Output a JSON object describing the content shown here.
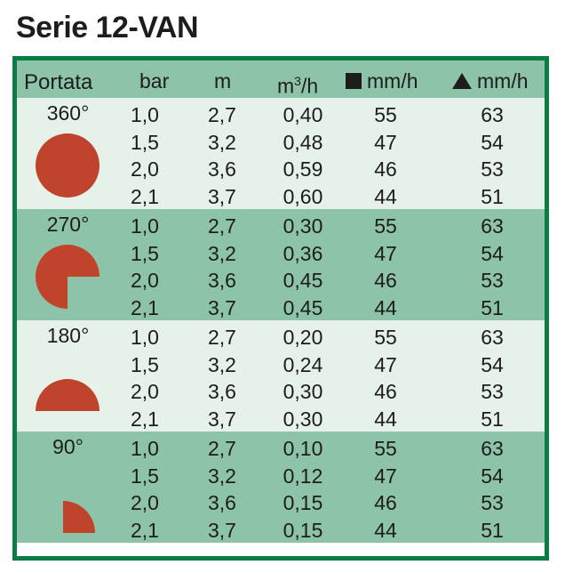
{
  "title": "Serie 12-VAN",
  "header": {
    "portata": "Portata",
    "bar": "bar",
    "m": "m",
    "flow_base": "m",
    "flow_sup": "3",
    "flow_unit": "/h",
    "square_rate": "mm/h",
    "triangle_rate": "mm/h"
  },
  "colors": {
    "frame": "#0a7c44",
    "row_light": "#e6f1ea",
    "row_dark": "#8dc3a8",
    "shape_fill": "#c0432b"
  },
  "groups": [
    {
      "angle": "360°",
      "rows": [
        {
          "bar": "1,0",
          "m": "2,7",
          "q": "0,40",
          "sq": "55",
          "tr": "63"
        },
        {
          "bar": "1,5",
          "m": "3,2",
          "q": "0,48",
          "sq": "47",
          "tr": "54"
        },
        {
          "bar": "2,0",
          "m": "3,6",
          "q": "0,59",
          "sq": "46",
          "tr": "53"
        },
        {
          "bar": "2,1",
          "m": "3,7",
          "q": "0,60",
          "sq": "44",
          "tr": "51"
        }
      ]
    },
    {
      "angle": "270°",
      "rows": [
        {
          "bar": "1,0",
          "m": "2,7",
          "q": "0,30",
          "sq": "55",
          "tr": "63"
        },
        {
          "bar": "1,5",
          "m": "3,2",
          "q": "0,36",
          "sq": "47",
          "tr": "54"
        },
        {
          "bar": "2,0",
          "m": "3,6",
          "q": "0,45",
          "sq": "46",
          "tr": "53"
        },
        {
          "bar": "2,1",
          "m": "3,7",
          "q": "0,45",
          "sq": "44",
          "tr": "51"
        }
      ]
    },
    {
      "angle": "180°",
      "rows": [
        {
          "bar": "1,0",
          "m": "2,7",
          "q": "0,20",
          "sq": "55",
          "tr": "63"
        },
        {
          "bar": "1,5",
          "m": "3,2",
          "q": "0,24",
          "sq": "47",
          "tr": "54"
        },
        {
          "bar": "2,0",
          "m": "3,6",
          "q": "0,30",
          "sq": "46",
          "tr": "53"
        },
        {
          "bar": "2,1",
          "m": "3,7",
          "q": "0,30",
          "sq": "44",
          "tr": "51"
        }
      ]
    },
    {
      "angle": "90°",
      "rows": [
        {
          "bar": "1,0",
          "m": "2,7",
          "q": "0,10",
          "sq": "55",
          "tr": "63"
        },
        {
          "bar": "1,5",
          "m": "3,2",
          "q": "0,12",
          "sq": "47",
          "tr": "54"
        },
        {
          "bar": "2,0",
          "m": "3,6",
          "q": "0,15",
          "sq": "46",
          "tr": "53"
        },
        {
          "bar": "2,1",
          "m": "3,7",
          "q": "0,15",
          "sq": "44",
          "tr": "51"
        }
      ]
    }
  ]
}
